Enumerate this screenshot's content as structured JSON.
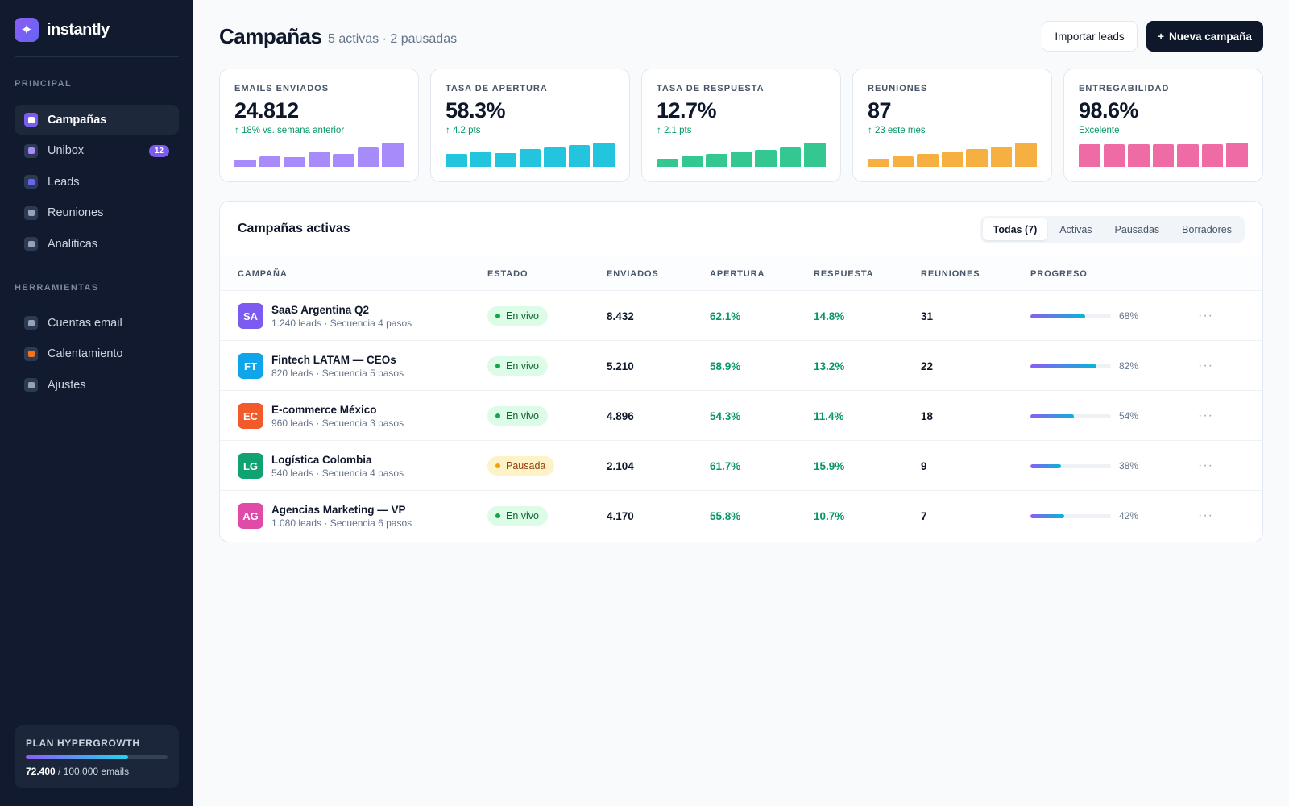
{
  "brand": {
    "name": "instantly",
    "logo_icon": "sparkle-icon"
  },
  "sidebar": {
    "section_principal": "PRINCIPAL",
    "section_tools": "HERRAMIENTAS",
    "items": [
      {
        "label": "Campañas",
        "icon": "campaigns-icon",
        "color": "#ffffff",
        "active": true
      },
      {
        "label": "Unibox",
        "icon": "inbox-icon",
        "color": "#a78bfa",
        "badge": "12"
      },
      {
        "label": "Leads",
        "icon": "leads-icon",
        "color": "#6366f1"
      },
      {
        "label": "Reuniones",
        "icon": "calendar-icon",
        "color": "#94a3b8"
      },
      {
        "label": "Analiticas",
        "icon": "analytics-icon",
        "color": "#94a3b8"
      }
    ],
    "tools": [
      {
        "label": "Cuentas email",
        "icon": "mail-icon",
        "color": "#94a3b8"
      },
      {
        "label": "Calentamiento",
        "icon": "flame-icon",
        "color": "#f97316"
      },
      {
        "label": "Ajustes",
        "icon": "gear-icon",
        "color": "#94a3b8"
      }
    ],
    "plan": {
      "title": "PLAN HYPERGROWTH",
      "used": "72.400",
      "total_text": " / 100.000 emails",
      "fraction": 0.724
    }
  },
  "header": {
    "title": "Campañas",
    "subtitle": "5 activas · 2 pausadas",
    "import_label": "Importar leads",
    "new_label": "Nueva campaña",
    "new_icon": "+"
  },
  "kpis": [
    {
      "label": "EMAILS ENVIADOS",
      "value": "24.812",
      "delta": "↑ 18% vs. semana anterior",
      "color": "#a78bfa",
      "bars": [
        0.3,
        0.45,
        0.4,
        0.65,
        0.55,
        0.8,
        1.0
      ]
    },
    {
      "label": "TASA DE APERTURA",
      "value": "58.3%",
      "delta": "↑ 4.2 pts",
      "color": "#22c5dd",
      "bars": [
        0.55,
        0.62,
        0.58,
        0.75,
        0.8,
        0.9,
        1.0
      ]
    },
    {
      "label": "TASA DE RESPUESTA",
      "value": "12.7%",
      "delta": "↑ 2.1 pts",
      "color": "#34c791",
      "bars": [
        0.32,
        0.48,
        0.55,
        0.62,
        0.7,
        0.8,
        1.0
      ]
    },
    {
      "label": "REUNIONES",
      "value": "87",
      "delta": "↑ 23 este mes",
      "color": "#f5b041",
      "bars": [
        0.35,
        0.45,
        0.55,
        0.62,
        0.72,
        0.85,
        1.0
      ]
    },
    {
      "label": "ENTREGABILIDAD",
      "value": "98.6%",
      "delta": "Excelente",
      "color": "#ef6ba6",
      "bars": [
        0.92,
        0.92,
        0.92,
        0.95,
        0.93,
        0.95,
        1.0
      ]
    }
  ],
  "table": {
    "title": "Campañas activas",
    "filters": [
      {
        "label": "Todas (7)",
        "active": true
      },
      {
        "label": "Activas"
      },
      {
        "label": "Pausadas"
      },
      {
        "label": "Borradores"
      }
    ],
    "columns": [
      "CAMPAÑA",
      "ESTADO",
      "ENVIADOS",
      "APERTURA",
      "RESPUESTA",
      "REUNIONES",
      "PROGRESO"
    ],
    "rows": [
      {
        "initials": "SA",
        "avatar_color": "#7c5cf0",
        "name": "SaaS Argentina Q2",
        "meta": "1.240 leads · Secuencia 4 pasos",
        "status": "En vivo",
        "status_type": "live",
        "sent": "8.432",
        "open": "62.1%",
        "reply": "14.8%",
        "meetings": "31",
        "progress": 0.68,
        "progress_label": "68%"
      },
      {
        "initials": "FT",
        "avatar_color": "#0ea5e9",
        "name": "Fintech LATAM — CEOs",
        "meta": "820 leads · Secuencia 5 pasos",
        "status": "En vivo",
        "status_type": "live",
        "sent": "5.210",
        "open": "58.9%",
        "reply": "13.2%",
        "meetings": "22",
        "progress": 0.82,
        "progress_label": "82%"
      },
      {
        "initials": "EC",
        "avatar_color": "#f25a2b",
        "name": "E-commerce México",
        "meta": "960 leads · Secuencia 3 pasos",
        "status": "En vivo",
        "status_type": "live",
        "sent": "4.896",
        "open": "54.3%",
        "reply": "11.4%",
        "meetings": "18",
        "progress": 0.54,
        "progress_label": "54%"
      },
      {
        "initials": "LG",
        "avatar_color": "#10a371",
        "name": "Logística Colombia",
        "meta": "540 leads · Secuencia 4 pasos",
        "status": "Pausada",
        "status_type": "paused",
        "sent": "2.104",
        "open": "61.7%",
        "reply": "15.9%",
        "meetings": "9",
        "progress": 0.38,
        "progress_label": "38%"
      },
      {
        "initials": "AG",
        "avatar_color": "#e04aa8",
        "name": "Agencias Marketing — VP",
        "meta": "1.080 leads · Secuencia 6 pasos",
        "status": "En vivo",
        "status_type": "live",
        "sent": "4.170",
        "open": "55.8%",
        "reply": "10.7%",
        "meetings": "7",
        "progress": 0.42,
        "progress_label": "42%"
      }
    ],
    "more_label": "···"
  },
  "status_colors": {
    "live": {
      "bg": "#dcfce7",
      "fg": "#166534",
      "dot": "#16a34a"
    },
    "paused": {
      "bg": "#fef3c7",
      "fg": "#92400e",
      "dot": "#f59e0b"
    }
  }
}
